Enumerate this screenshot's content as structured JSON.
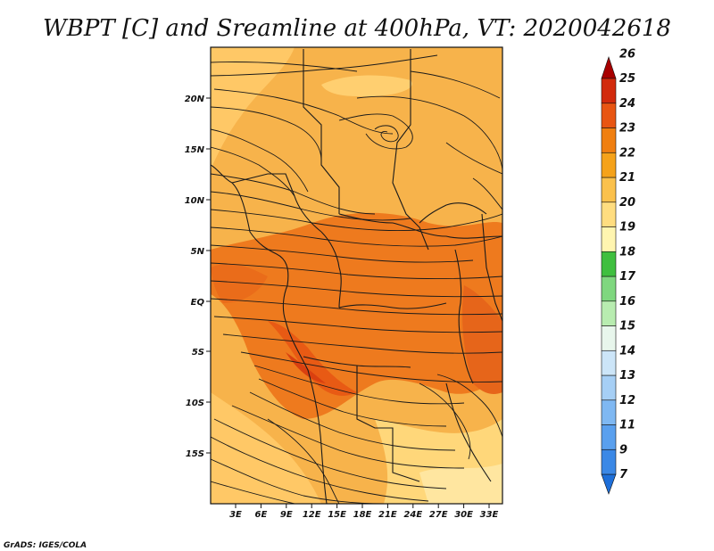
{
  "title": "WBPT [C] and Sreamline at 400hPa, VT: 2020042618",
  "credit": "GrADS: IGES/COLA",
  "map": {
    "variable": "Wet-bulb potential temperature (C)",
    "level": "400hPa",
    "valid_time": "2020042618",
    "lat_ticks": [
      "20N",
      "15N",
      "10N",
      "5N",
      "EQ",
      "5S",
      "10S",
      "15S"
    ],
    "lon_ticks": [
      "3E",
      "6E",
      "9E",
      "12E",
      "15E",
      "18E",
      "21E",
      "24E",
      "27E",
      "30E",
      "33E"
    ],
    "lat_range": [
      -19,
      24.5
    ],
    "lon_range": [
      0.5,
      35
    ]
  },
  "colorbar": {
    "labels": [
      "7",
      "9",
      "11",
      "12",
      "13",
      "14",
      "15",
      "16",
      "17",
      "18",
      "19",
      "20",
      "21",
      "22",
      "23",
      "24",
      "25",
      "26"
    ],
    "colors": [
      "#1e6fd9",
      "#3b88e6",
      "#5aa0ee",
      "#7fb8f2",
      "#a6cff5",
      "#cce5f8",
      "#e8f6ec",
      "#b8ecb0",
      "#7fd77f",
      "#3fbf3f",
      "#fff5b0",
      "#ffdd80",
      "#fbc14c",
      "#f5a21a",
      "#f07f10",
      "#e85512",
      "#d22a0c",
      "#a80000"
    ]
  },
  "colors": {
    "warm_base": "#f5b04a",
    "hot_core": "#ec6a18",
    "cool_band": "#ffd77a"
  }
}
